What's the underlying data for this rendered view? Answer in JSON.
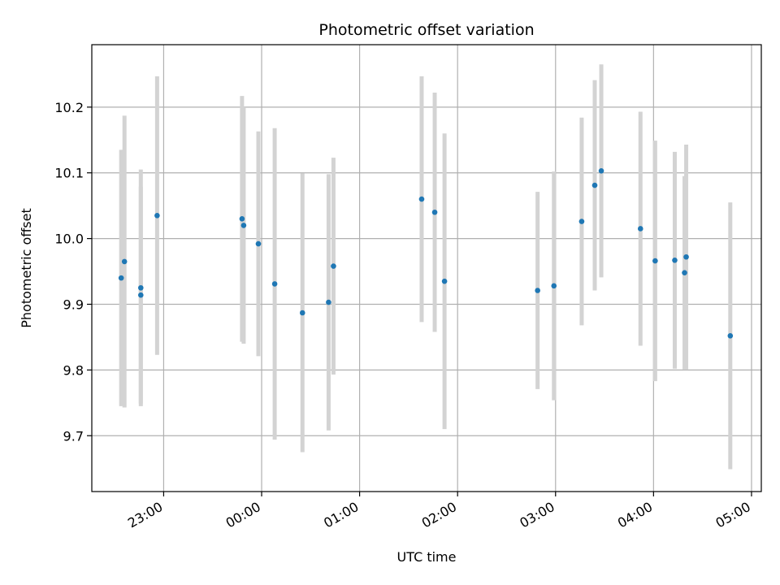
{
  "chart_data": {
    "type": "scatter",
    "title": "Photometric offset variation",
    "xlabel": "UTC time",
    "ylabel": "Photometric offset",
    "x_ticks": [
      "23:00",
      "00:00",
      "01:00",
      "02:00",
      "03:00",
      "04:00",
      "05:00"
    ],
    "y_ticks": [
      "9.7",
      "9.8",
      "9.9",
      "10.0",
      "10.1",
      "10.2"
    ],
    "xlim": [
      "22:16",
      "05:06"
    ],
    "ylim": [
      9.615,
      10.295
    ],
    "grid": true,
    "point_color": "#1f77b4",
    "errorbar_color": "#d3d3d3",
    "points": [
      {
        "t": "22:34",
        "y": 9.94,
        "err": 0.195
      },
      {
        "t": "22:36",
        "y": 9.965,
        "err": 0.222
      },
      {
        "t": "22:46",
        "y": 9.925,
        "err": 0.18
      },
      {
        "t": "22:46",
        "y": 9.914,
        "err": 0.165
      },
      {
        "t": "22:56",
        "y": 10.035,
        "err": 0.212
      },
      {
        "t": "23:48",
        "y": 10.03,
        "err": 0.187
      },
      {
        "t": "23:49",
        "y": 10.02,
        "err": 0.18
      },
      {
        "t": "23:58",
        "y": 9.992,
        "err": 0.171
      },
      {
        "t": "00:08",
        "y": 9.931,
        "err": 0.237
      },
      {
        "t": "00:25",
        "y": 9.887,
        "err": 0.212
      },
      {
        "t": "00:41",
        "y": 9.903,
        "err": 0.195
      },
      {
        "t": "00:44",
        "y": 9.958,
        "err": 0.165
      },
      {
        "t": "01:38",
        "y": 10.06,
        "err": 0.187
      },
      {
        "t": "01:46",
        "y": 10.04,
        "err": 0.182
      },
      {
        "t": "01:52",
        "y": 9.935,
        "err": 0.225
      },
      {
        "t": "02:49",
        "y": 9.921,
        "err": 0.15
      },
      {
        "t": "02:59",
        "y": 9.928,
        "err": 0.174
      },
      {
        "t": "03:16",
        "y": 10.026,
        "err": 0.158
      },
      {
        "t": "03:24",
        "y": 10.081,
        "err": 0.16
      },
      {
        "t": "03:28",
        "y": 10.103,
        "err": 0.162
      },
      {
        "t": "03:52",
        "y": 10.015,
        "err": 0.178
      },
      {
        "t": "04:01",
        "y": 9.966,
        "err": 0.183
      },
      {
        "t": "04:13",
        "y": 9.967,
        "err": 0.165
      },
      {
        "t": "04:19",
        "y": 9.948,
        "err": 0.147
      },
      {
        "t": "04:20",
        "y": 9.972,
        "err": 0.171
      },
      {
        "t": "04:47",
        "y": 9.852,
        "err": 0.203
      }
    ]
  }
}
